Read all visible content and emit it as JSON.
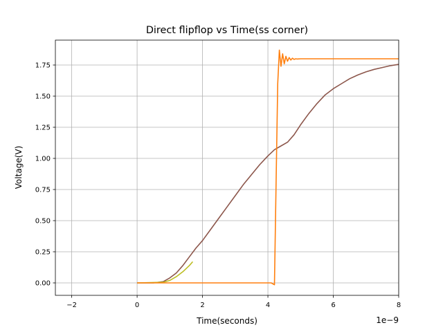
{
  "chart_data": {
    "type": "line",
    "title": "Direct flipflop vs Time(ss corner)",
    "xlabel": "Time(seconds)",
    "ylabel": "Voltage(V)",
    "x_offset_label": "1e−9",
    "xlim": [
      -2.5,
      8
    ],
    "ylim": [
      -0.1,
      1.95
    ],
    "x_ticks": [
      -2,
      0,
      2,
      4,
      6,
      8
    ],
    "x_tick_labels": [
      "−2",
      "0",
      "2",
      "4",
      "6",
      "8"
    ],
    "y_ticks": [
      0.0,
      0.25,
      0.5,
      0.75,
      1.0,
      1.25,
      1.5,
      1.75
    ],
    "y_tick_labels": [
      "0.00",
      "0.25",
      "0.50",
      "0.75",
      "1.00",
      "1.25",
      "1.50",
      "1.75"
    ],
    "grid": true,
    "series": [
      {
        "color": "#8c564b",
        "x": [
          0,
          0.5,
          0.8,
          1.0,
          1.2,
          1.4,
          1.6,
          1.8,
          2.0,
          2.25,
          2.5,
          2.75,
          3.0,
          3.25,
          3.5,
          3.75,
          4.0,
          4.2,
          4.4,
          4.6,
          4.8,
          5.0,
          5.25,
          5.5,
          5.75,
          6.0,
          6.25,
          6.5,
          6.75,
          7.0,
          7.25,
          7.5,
          7.75,
          8.0
        ],
        "y": [
          0.0,
          0.0,
          0.01,
          0.04,
          0.08,
          0.14,
          0.21,
          0.28,
          0.34,
          0.43,
          0.52,
          0.61,
          0.7,
          0.79,
          0.87,
          0.95,
          1.02,
          1.07,
          1.1,
          1.13,
          1.19,
          1.27,
          1.36,
          1.44,
          1.51,
          1.56,
          1.6,
          1.64,
          1.67,
          1.695,
          1.715,
          1.73,
          1.745,
          1.755
        ]
      },
      {
        "color": "#bcbd22",
        "x": [
          0,
          0.8,
          1.0,
          1.2,
          1.4,
          1.6,
          1.7
        ],
        "y": [
          0.0,
          0.005,
          0.02,
          0.05,
          0.09,
          0.14,
          0.17
        ]
      },
      {
        "color": "#ff7f0e",
        "x": [
          0,
          2,
          4.0,
          4.1,
          4.2,
          4.25,
          4.3,
          4.35,
          4.4,
          4.45,
          4.5,
          4.55,
          4.6,
          4.65,
          4.7,
          4.75,
          4.8,
          4.85,
          4.9,
          5.0,
          5.2,
          5.5,
          6.0,
          7.0,
          8.0
        ],
        "y": [
          0.0,
          0.0,
          0.0,
          0.0,
          -0.015,
          0.8,
          1.6,
          1.87,
          1.74,
          1.84,
          1.76,
          1.82,
          1.78,
          1.81,
          1.79,
          1.805,
          1.795,
          1.8,
          1.798,
          1.8,
          1.8,
          1.8,
          1.8,
          1.8,
          1.8
        ]
      }
    ]
  }
}
